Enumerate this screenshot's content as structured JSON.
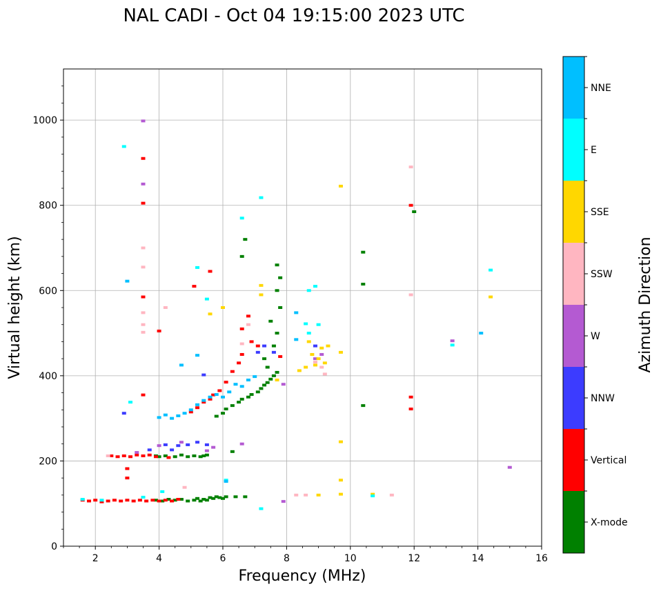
{
  "chart_data": {
    "type": "scatter",
    "title": "NAL CADI - Oct 04 19:15:00 2023 UTC",
    "xlabel": "Frequency (MHz)",
    "ylabel": "Virtual height (km)",
    "xlim": [
      1,
      16
    ],
    "ylim": [
      0,
      1120
    ],
    "xticks": [
      2,
      4,
      6,
      8,
      10,
      12,
      14,
      16
    ],
    "yticks": [
      0,
      200,
      400,
      600,
      800,
      1000
    ],
    "grid": true,
    "colorbar": {
      "label": "Azimuth Direction",
      "categories": [
        {
          "name": "X-mode",
          "color": "#008000"
        },
        {
          "name": "Vertical",
          "color": "#ff0000"
        },
        {
          "name": "NNW",
          "color": "#3c3cff"
        },
        {
          "name": "W",
          "color": "#b45ad2"
        },
        {
          "name": "SSW",
          "color": "#ffb6c1"
        },
        {
          "name": "SSE",
          "color": "#ffd700"
        },
        {
          "name": "E",
          "color": "#00ffff"
        },
        {
          "name": "NNE",
          "color": "#00bfff"
        }
      ]
    },
    "series": [
      {
        "name": "X-mode",
        "points": [
          [
            3.9,
            108
          ],
          [
            4.1,
            106
          ],
          [
            4.3,
            110
          ],
          [
            4.5,
            108
          ],
          [
            4.7,
            110
          ],
          [
            4.9,
            106
          ],
          [
            5.1,
            108
          ],
          [
            5.2,
            112
          ],
          [
            5.3,
            106
          ],
          [
            5.4,
            110
          ],
          [
            5.5,
            108
          ],
          [
            5.6,
            114
          ],
          [
            5.7,
            112
          ],
          [
            5.8,
            116
          ],
          [
            5.9,
            114
          ],
          [
            6.0,
            112
          ],
          [
            6.1,
            116
          ],
          [
            6.4,
            116
          ],
          [
            6.7,
            116
          ],
          [
            3.9,
            212
          ],
          [
            4.0,
            210
          ],
          [
            4.2,
            212
          ],
          [
            4.5,
            210
          ],
          [
            4.7,
            214
          ],
          [
            4.9,
            210
          ],
          [
            5.1,
            212
          ],
          [
            5.3,
            210
          ],
          [
            5.4,
            212
          ],
          [
            5.5,
            214
          ],
          [
            6.3,
            222
          ],
          [
            5.8,
            305
          ],
          [
            6.0,
            312
          ],
          [
            6.1,
            322
          ],
          [
            6.3,
            330
          ],
          [
            6.5,
            338
          ],
          [
            6.6,
            345
          ],
          [
            6.8,
            350
          ],
          [
            6.9,
            356
          ],
          [
            7.1,
            362
          ],
          [
            7.2,
            370
          ],
          [
            7.3,
            378
          ],
          [
            7.4,
            384
          ],
          [
            7.5,
            392
          ],
          [
            7.6,
            400
          ],
          [
            7.7,
            408
          ],
          [
            7.4,
            420
          ],
          [
            7.3,
            440
          ],
          [
            7.6,
            470
          ],
          [
            7.7,
            500
          ],
          [
            7.5,
            528
          ],
          [
            7.8,
            560
          ],
          [
            7.7,
            600
          ],
          [
            7.8,
            630
          ],
          [
            7.7,
            660
          ],
          [
            6.7,
            720
          ],
          [
            6.6,
            680
          ],
          [
            10.4,
            690
          ],
          [
            10.4,
            615
          ],
          [
            10.4,
            330
          ],
          [
            12.0,
            785
          ]
        ]
      },
      {
        "name": "Vertical",
        "points": [
          [
            1.6,
            108
          ],
          [
            1.8,
            106
          ],
          [
            2.0,
            108
          ],
          [
            2.2,
            104
          ],
          [
            2.4,
            106
          ],
          [
            2.6,
            108
          ],
          [
            2.8,
            106
          ],
          [
            3.0,
            108
          ],
          [
            3.2,
            106
          ],
          [
            3.4,
            108
          ],
          [
            3.6,
            106
          ],
          [
            3.8,
            108
          ],
          [
            4.0,
            106
          ],
          [
            4.2,
            108
          ],
          [
            4.4,
            106
          ],
          [
            4.6,
            110
          ],
          [
            3.0,
            182
          ],
          [
            3.0,
            160
          ],
          [
            2.5,
            212
          ],
          [
            2.7,
            210
          ],
          [
            2.9,
            212
          ],
          [
            3.1,
            210
          ],
          [
            3.3,
            214
          ],
          [
            3.5,
            212
          ],
          [
            3.7,
            214
          ],
          [
            3.9,
            210
          ],
          [
            4.3,
            208
          ],
          [
            5.0,
            315
          ],
          [
            5.2,
            325
          ],
          [
            5.4,
            338
          ],
          [
            5.6,
            345
          ],
          [
            5.7,
            355
          ],
          [
            5.9,
            365
          ],
          [
            6.1,
            385
          ],
          [
            6.3,
            410
          ],
          [
            6.5,
            430
          ],
          [
            6.6,
            450
          ],
          [
            6.6,
            510
          ],
          [
            6.8,
            540
          ],
          [
            6.9,
            480
          ],
          [
            7.1,
            470
          ],
          [
            3.5,
            355
          ],
          [
            3.5,
            585
          ],
          [
            3.5,
            805
          ],
          [
            3.5,
            910
          ],
          [
            4.0,
            505
          ],
          [
            5.1,
            610
          ],
          [
            5.6,
            645
          ],
          [
            7.8,
            445
          ],
          [
            11.9,
            350
          ],
          [
            11.9,
            322
          ],
          [
            11.9,
            800
          ]
        ]
      },
      {
        "name": "NNW",
        "points": [
          [
            4.2,
            238
          ],
          [
            4.6,
            236
          ],
          [
            4.9,
            238
          ],
          [
            5.2,
            244
          ],
          [
            5.5,
            238
          ],
          [
            3.7,
            226
          ],
          [
            4.4,
            226
          ],
          [
            7.1,
            455
          ],
          [
            7.3,
            470
          ],
          [
            7.6,
            455
          ],
          [
            2.9,
            312
          ],
          [
            5.4,
            402
          ],
          [
            8.9,
            470
          ]
        ]
      },
      {
        "name": "W",
        "points": [
          [
            3.5,
            998
          ],
          [
            3.5,
            850
          ],
          [
            3.3,
            220
          ],
          [
            4.0,
            236
          ],
          [
            4.7,
            244
          ],
          [
            5.7,
            232
          ],
          [
            6.6,
            240
          ],
          [
            7.9,
            105
          ],
          [
            7.9,
            380
          ],
          [
            8.9,
            440
          ],
          [
            9.1,
            450
          ],
          [
            13.2,
            482
          ],
          [
            15.0,
            185
          ],
          [
            5.5,
            224
          ]
        ]
      },
      {
        "name": "SSW",
        "points": [
          [
            3.5,
            700
          ],
          [
            3.5,
            655
          ],
          [
            3.5,
            548
          ],
          [
            3.5,
            520
          ],
          [
            3.5,
            502
          ],
          [
            4.2,
            560
          ],
          [
            6.6,
            475
          ],
          [
            6.8,
            520
          ],
          [
            8.3,
            120
          ],
          [
            8.6,
            120
          ],
          [
            8.9,
            432
          ],
          [
            9.1,
            420
          ],
          [
            9.2,
            404
          ],
          [
            11.3,
            120
          ],
          [
            11.9,
            590
          ],
          [
            11.9,
            890
          ],
          [
            2.4,
            212
          ],
          [
            4.8,
            138
          ]
        ]
      },
      {
        "name": "SSE",
        "points": [
          [
            7.2,
            590
          ],
          [
            7.2,
            612
          ],
          [
            5.6,
            545
          ],
          [
            6.0,
            560
          ],
          [
            8.4,
            412
          ],
          [
            8.6,
            420
          ],
          [
            8.7,
            480
          ],
          [
            8.8,
            450
          ],
          [
            8.9,
            425
          ],
          [
            9.0,
            440
          ],
          [
            9.1,
            465
          ],
          [
            9.2,
            430
          ],
          [
            9.3,
            470
          ],
          [
            9.0,
            120
          ],
          [
            9.7,
            122
          ],
          [
            9.7,
            155
          ],
          [
            9.7,
            245
          ],
          [
            9.7,
            455
          ],
          [
            9.7,
            845
          ],
          [
            10.7,
            122
          ],
          [
            14.4,
            585
          ],
          [
            7.7,
            390
          ]
        ]
      },
      {
        "name": "E",
        "points": [
          [
            1.6,
            110
          ],
          [
            2.2,
            108
          ],
          [
            3.5,
            115
          ],
          [
            4.1,
            128
          ],
          [
            6.1,
            155
          ],
          [
            7.2,
            88
          ],
          [
            7.2,
            818
          ],
          [
            6.6,
            770
          ],
          [
            5.2,
            654
          ],
          [
            8.9,
            610
          ],
          [
            8.7,
            600
          ],
          [
            8.6,
            522
          ],
          [
            8.7,
            500
          ],
          [
            9.0,
            520
          ],
          [
            10.7,
            118
          ],
          [
            13.2,
            472
          ],
          [
            14.4,
            648
          ],
          [
            5.5,
            580
          ],
          [
            3.1,
            338
          ],
          [
            2.9,
            938
          ]
        ]
      },
      {
        "name": "NNE",
        "points": [
          [
            4.0,
            302
          ],
          [
            4.2,
            308
          ],
          [
            4.4,
            300
          ],
          [
            4.6,
            306
          ],
          [
            4.8,
            312
          ],
          [
            5.0,
            320
          ],
          [
            5.2,
            332
          ],
          [
            5.4,
            342
          ],
          [
            5.6,
            350
          ],
          [
            5.8,
            356
          ],
          [
            6.0,
            350
          ],
          [
            6.2,
            362
          ],
          [
            6.4,
            380
          ],
          [
            6.6,
            375
          ],
          [
            6.8,
            390
          ],
          [
            7.0,
            398
          ],
          [
            4.7,
            425
          ],
          [
            5.2,
            448
          ],
          [
            8.3,
            548
          ],
          [
            8.3,
            485
          ],
          [
            14.1,
            500
          ],
          [
            3.0,
            622
          ],
          [
            6.1,
            152
          ]
        ]
      }
    ]
  }
}
